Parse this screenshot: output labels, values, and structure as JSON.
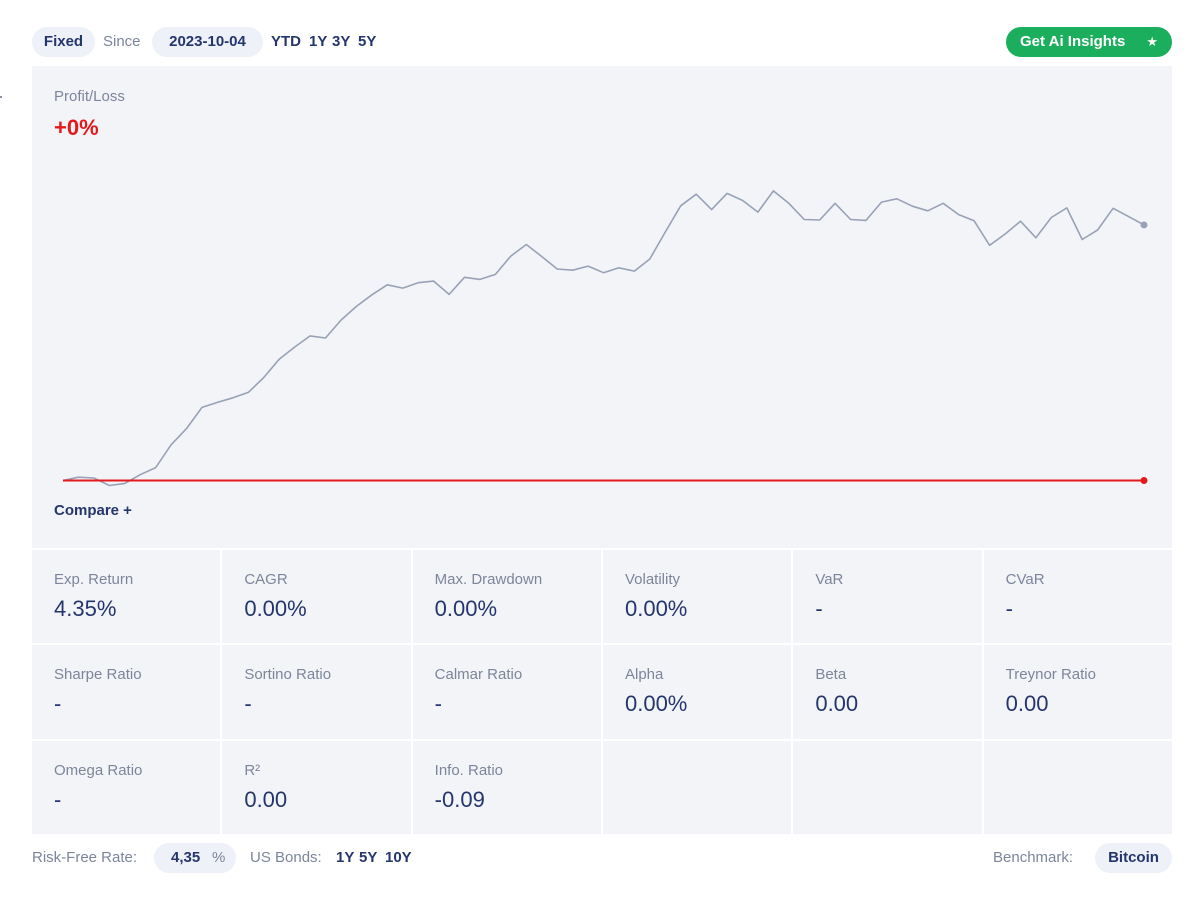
{
  "topbar": {
    "mode_label": "Fixed",
    "since_label": "Since",
    "since_date": "2023-10-04",
    "periods": [
      "YTD",
      "1Y",
      "3Y",
      "5Y"
    ],
    "ai_button_label": "Get Ai Insights",
    "ai_button_icon": "star-icon"
  },
  "chart": {
    "label": "Profit/Loss",
    "value": "+0%",
    "compare_label": "Compare +",
    "colors": {
      "baseline": "#e3191c",
      "series": "#98a2b6",
      "value": "#e3191c"
    }
  },
  "chart_data": {
    "type": "line",
    "title": "",
    "xlabel": "",
    "ylabel": "",
    "ylim": [
      -3,
      74
    ],
    "grid": false,
    "series": [
      {
        "values": [
          0,
          0.8,
          0.6,
          -1.2,
          -0.7,
          1.4,
          3.1,
          8.6,
          12.5,
          17.6,
          18.8,
          19.9,
          21.2,
          24.8,
          29.2,
          32.1,
          34.8,
          34.3,
          38.6,
          41.9,
          44.7,
          47.1,
          46.3,
          47.6,
          48.0,
          44.8,
          48.9,
          48.4,
          49.6,
          54.0,
          56.8,
          53.9,
          50.9,
          50.6,
          51.6,
          50.0,
          51.2,
          50.4,
          53.3,
          59.8,
          66.1,
          68.9,
          65.2,
          69.1,
          67.4,
          64.6,
          69.7,
          66.7,
          62.8,
          62.7,
          66.7,
          62.8,
          62.6,
          67.0,
          67.8,
          66.0,
          64.9,
          66.7,
          64.0,
          62.5,
          56.6,
          59.3,
          62.4,
          58.4,
          63.3,
          65.6,
          58.0,
          60.3,
          65.5,
          63.5,
          61.5
        ]
      },
      {
        "values": [
          0,
          0,
          0,
          0,
          0,
          0,
          0,
          0,
          0,
          0,
          0,
          0,
          0,
          0,
          0,
          0,
          0,
          0,
          0,
          0,
          0,
          0,
          0,
          0,
          0,
          0,
          0,
          0,
          0,
          0,
          0,
          0,
          0,
          0,
          0,
          0,
          0,
          0,
          0,
          0,
          0,
          0,
          0,
          0,
          0,
          0,
          0,
          0,
          0,
          0,
          0,
          0,
          0,
          0,
          0,
          0,
          0,
          0,
          0,
          0,
          0,
          0,
          0,
          0,
          0,
          0,
          0,
          0,
          0,
          0,
          0
        ]
      }
    ]
  },
  "metrics": [
    {
      "label": "Exp. Return",
      "value": "4.35%"
    },
    {
      "label": "CAGR",
      "value": "0.00%"
    },
    {
      "label": "Max. Drawdown",
      "value": "0.00%"
    },
    {
      "label": "Volatility",
      "value": "0.00%"
    },
    {
      "label": "VaR",
      "value": "-"
    },
    {
      "label": "CVaR",
      "value": "-"
    },
    {
      "label": "Sharpe Ratio",
      "value": "-"
    },
    {
      "label": "Sortino Ratio",
      "value": "-"
    },
    {
      "label": "Calmar Ratio",
      "value": "-"
    },
    {
      "label": "Alpha",
      "value": "0.00%"
    },
    {
      "label": "Beta",
      "value": "0.00"
    },
    {
      "label": "Treynor Ratio",
      "value": "0.00"
    },
    {
      "label": "Omega Ratio",
      "value": "-"
    },
    {
      "label": "R²",
      "value": "0.00"
    },
    {
      "label": "Info. Ratio",
      "value": "-0.09"
    }
  ],
  "bottombar": {
    "risk_free_label": "Risk-Free Rate:",
    "risk_free_value": "4,35",
    "risk_free_unit": "%",
    "bonds_label": "US Bonds:",
    "bond_periods": [
      "1Y",
      "5Y",
      "10Y"
    ],
    "benchmark_label": "Benchmark:",
    "benchmark_value": "Bitcoin"
  }
}
